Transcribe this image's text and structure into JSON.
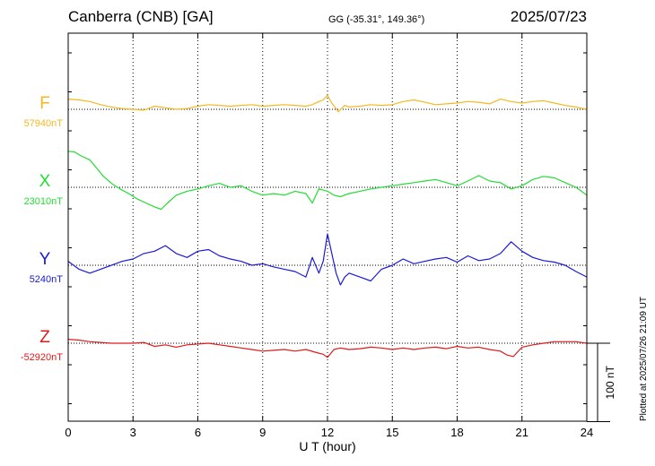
{
  "header": {
    "station": "Canberra (CNB)  [GA]",
    "coords": "GG (-35.31°, 149.36°)",
    "date": "2025/07/23"
  },
  "footer": {
    "plotted": "Plotted at 2025/07/26 21:09 UT"
  },
  "chart_data": {
    "type": "line",
    "xlabel": "U T (hour)",
    "xlim": [
      0,
      24
    ],
    "xticks": [
      "0",
      "3",
      "6",
      "9",
      "12",
      "15",
      "18",
      "21",
      "24"
    ],
    "scale_bar": {
      "value": 100,
      "label": "100 nT"
    },
    "grid": true,
    "series": [
      {
        "name": "F",
        "baseline_label": "57940nT",
        "baseline": 57940,
        "color": "#f5b820",
        "x": [
          0,
          0.5,
          1,
          1.5,
          2,
          2.5,
          3,
          3.5,
          4,
          4.5,
          5,
          5.5,
          6,
          6.5,
          7,
          7.5,
          8,
          8.5,
          9,
          9.5,
          10,
          10.5,
          11,
          11.3,
          11.6,
          11.8,
          12,
          12.2,
          12.5,
          12.8,
          13,
          13.5,
          14,
          14.5,
          15,
          15.5,
          16,
          16.5,
          17,
          17.5,
          18,
          18.5,
          19,
          19.5,
          20,
          20.5,
          21,
          21.5,
          22,
          22.5,
          23,
          23.5,
          24
        ],
        "values": [
          57953,
          57952,
          57950,
          57946,
          57943,
          57941,
          57940,
          57939,
          57944,
          57942,
          57940,
          57941,
          57944,
          57946,
          57945,
          57944,
          57945,
          57946,
          57944,
          57945,
          57946,
          57945,
          57944,
          57946,
          57950,
          57952,
          57958,
          57948,
          57937,
          57945,
          57943,
          57944,
          57946,
          57945,
          57946,
          57950,
          57952,
          57949,
          57946,
          57947,
          57948,
          57950,
          57949,
          57947,
          57953,
          57950,
          57948,
          57950,
          57951,
          57948,
          57945,
          57943,
          57940
        ]
      },
      {
        "name": "X",
        "baseline_label": "23010nT",
        "baseline": 23010,
        "color": "#22dd33",
        "x": [
          0,
          0.3,
          0.6,
          1,
          1.3,
          1.6,
          2,
          2.4,
          2.8,
          3.2,
          3.6,
          4,
          4.3,
          4.6,
          5,
          5.5,
          6,
          6.5,
          7,
          7.5,
          8,
          8.5,
          9,
          9.5,
          10,
          10.5,
          11,
          11.3,
          11.6,
          12,
          12.3,
          12.6,
          13,
          13.5,
          14,
          14.5,
          15,
          15.5,
          16,
          16.5,
          17,
          17.5,
          18,
          18.5,
          19,
          19.5,
          20,
          20.5,
          21,
          21.5,
          22,
          22.5,
          23,
          23.5,
          24
        ],
        "values": [
          23056,
          23055,
          23050,
          23045,
          23035,
          23025,
          23015,
          23008,
          23002,
          22995,
          22990,
          22985,
          22982,
          22990,
          23000,
          23005,
          23008,
          23012,
          23015,
          23010,
          23012,
          23005,
          23000,
          23002,
          23000,
          23005,
          23002,
          22990,
          23008,
          23005,
          23000,
          22998,
          23002,
          23005,
          23008,
          23010,
          23012,
          23014,
          23016,
          23018,
          23020,
          23016,
          23012,
          23018,
          23025,
          23018,
          23016,
          23008,
          23012,
          23020,
          23024,
          23022,
          23016,
          23010,
          23000
        ]
      },
      {
        "name": "Y",
        "baseline_label": "5240nT",
        "baseline": 5240,
        "color": "#1a1ad8",
        "x": [
          0,
          0.5,
          1,
          1.5,
          2,
          2.5,
          3,
          3.5,
          4,
          4.5,
          5,
          5.5,
          6,
          6.5,
          7,
          7.5,
          8,
          8.5,
          9,
          9.5,
          10,
          10.5,
          11,
          11.3,
          11.6,
          11.8,
          12,
          12.2,
          12.4,
          12.6,
          12.8,
          13,
          13.5,
          14,
          14.5,
          15,
          15.5,
          16,
          16.5,
          17,
          17.5,
          18,
          18.5,
          19,
          19.5,
          20,
          20.5,
          21,
          21.5,
          22,
          22.5,
          23,
          23.5,
          24
        ],
        "values": [
          5245,
          5235,
          5230,
          5235,
          5240,
          5245,
          5248,
          5255,
          5258,
          5265,
          5255,
          5250,
          5258,
          5260,
          5252,
          5248,
          5245,
          5240,
          5242,
          5238,
          5235,
          5232,
          5225,
          5250,
          5230,
          5245,
          5280,
          5255,
          5230,
          5215,
          5225,
          5230,
          5225,
          5220,
          5235,
          5240,
          5248,
          5242,
          5245,
          5248,
          5250,
          5244,
          5252,
          5246,
          5248,
          5255,
          5270,
          5258,
          5250,
          5246,
          5244,
          5240,
          5232,
          5225
        ]
      },
      {
        "name": "Z",
        "baseline_label": "-52920nT",
        "baseline": -52920,
        "color": "#e01a1a",
        "x": [
          0,
          0.5,
          1,
          1.5,
          2,
          2.5,
          3,
          3.5,
          4,
          4.5,
          5,
          5.5,
          6,
          6.5,
          7,
          7.5,
          8,
          8.5,
          9,
          9.5,
          10,
          10.5,
          11,
          11.5,
          11.8,
          12,
          12.3,
          12.6,
          13,
          13.5,
          14,
          14.5,
          15,
          15.5,
          16,
          16.5,
          17,
          17.5,
          18,
          18.5,
          19,
          19.5,
          20,
          20.3,
          20.6,
          21,
          21.5,
          22,
          22.5,
          23,
          23.5,
          24
        ],
        "values": [
          -52915,
          -52916,
          -52918,
          -52919,
          -52920,
          -52920,
          -52920,
          -52919,
          -52924,
          -52922,
          -52925,
          -52922,
          -52921,
          -52920,
          -52922,
          -52924,
          -52926,
          -52928,
          -52930,
          -52929,
          -52928,
          -52930,
          -52928,
          -52932,
          -52934,
          -52938,
          -52928,
          -52926,
          -52928,
          -52927,
          -52925,
          -52926,
          -52928,
          -52926,
          -52928,
          -52926,
          -52925,
          -52927,
          -52924,
          -52926,
          -52925,
          -52928,
          -52930,
          -52935,
          -52937,
          -52925,
          -52922,
          -52920,
          -52918,
          -52918,
          -52918,
          -52920
        ]
      }
    ]
  }
}
